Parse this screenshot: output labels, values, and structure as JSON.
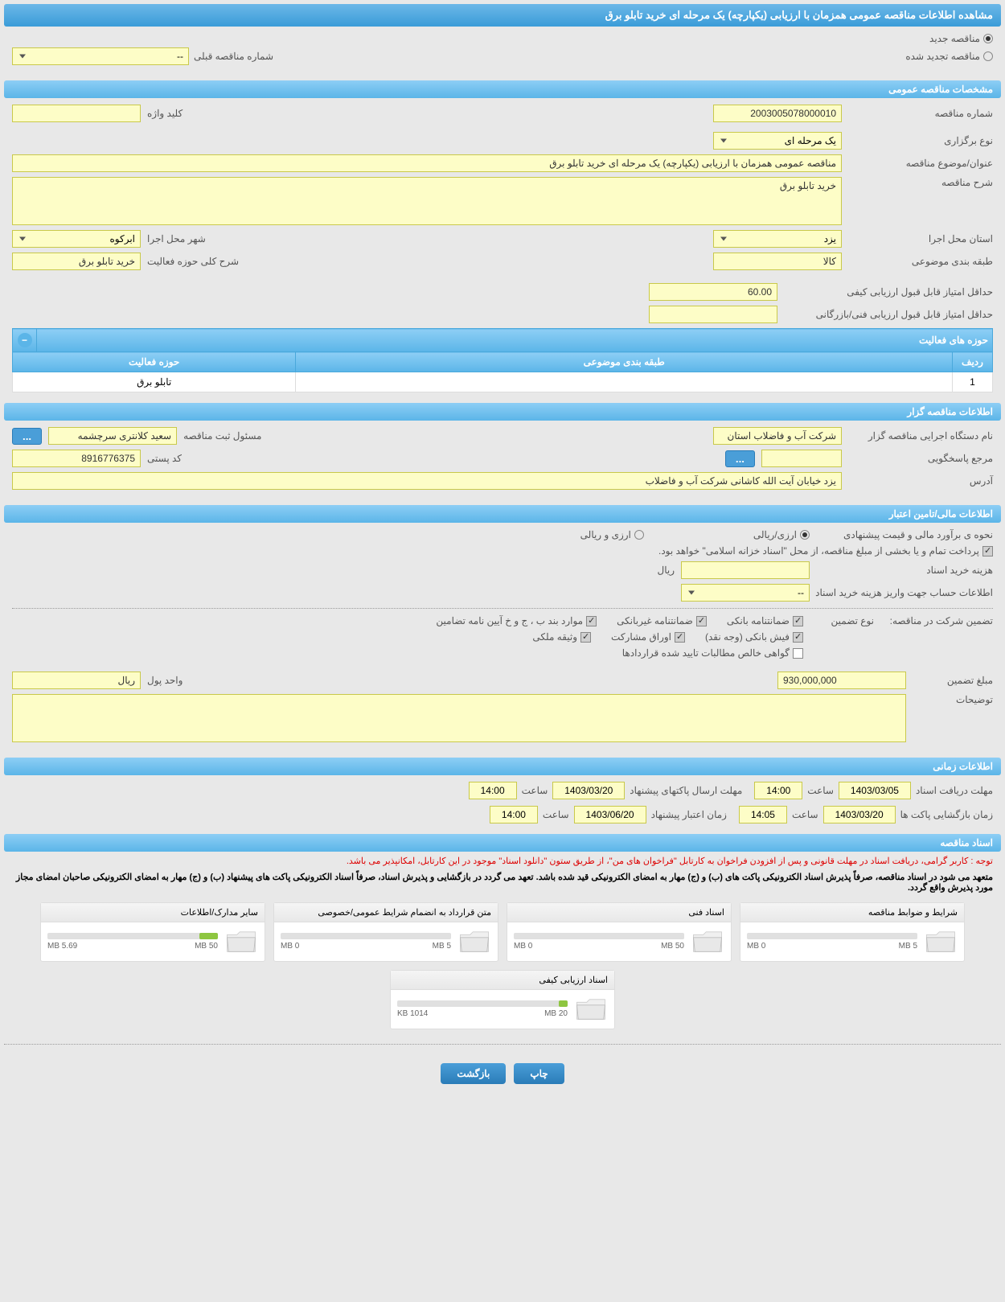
{
  "header": {
    "title": "مشاهده اطلاعات مناقصه عمومی همزمان با ارزیابی (یکپارچه) یک مرحله ای خرید تابلو برق"
  },
  "tender_type": {
    "new_label": "مناقصه جدید",
    "renewed_label": "مناقصه تجدید شده",
    "prev_number_label": "شماره مناقصه قبلی",
    "prev_number_value": "--"
  },
  "general": {
    "section_title": "مشخصات مناقصه عمومی",
    "number_label": "شماره مناقصه",
    "number_value": "2003005078000010",
    "type_label": "نوع برگزاری",
    "type_value": "یک مرحله ای",
    "keyword_label": "کلید واژه",
    "keyword_value": "",
    "subject_label": "عنوان/موضوع مناقصه",
    "subject_value": "مناقصه عمومی همزمان با ارزیابی (یکپارچه) یک مرحله ای خرید تابلو برق",
    "desc_label": "شرح مناقصه",
    "desc_value": "خرید تابلو برق",
    "province_label": "استان محل اجرا",
    "province_value": "یزد",
    "city_label": "شهر محل اجرا",
    "city_value": "ابرکوه",
    "category_label": "طبقه بندی موضوعی",
    "category_value": "کالا",
    "activity_desc_label": "شرح کلی حوزه فعالیت",
    "activity_desc_value": "خرید تابلو برق",
    "min_quality_label": "حداقل امتیاز قابل قبول ارزیابی کیفی",
    "min_quality_value": "60.00",
    "min_tech_label": "حداقل امتیاز قابل قبول ارزیابی فنی/بازرگانی",
    "min_tech_value": ""
  },
  "activities": {
    "header": "حوزه های فعالیت",
    "col_row": "ردیف",
    "col_category": "طبقه بندی موضوعی",
    "col_activity": "حوزه فعالیت",
    "rows": [
      {
        "idx": "1",
        "category": "",
        "activity": "تابلو برق"
      }
    ]
  },
  "organizer": {
    "section_title": "اطلاعات مناقصه گزار",
    "org_label": "نام دستگاه اجرایی مناقصه گزار",
    "org_value": "شرکت آب و فاضلاب استان",
    "responsible_label": "مسئول ثبت مناقصه",
    "responsible_value": "سعید کلانتری سرچشمه",
    "ref_label": "مرجع پاسخگویی",
    "ref_value": "",
    "dots": "...",
    "postal_label": "کد پستی",
    "postal_value": "8916776375",
    "address_label": "آدرس",
    "address_value": "یزد خیابان آیت الله کاشانی شرکت آب و فاضلاب"
  },
  "financial": {
    "section_title": "اطلاعات مالی/تامین اعتبار",
    "estimate_label": "نحوه ی برآورد مالی و قیمت پیشنهادی",
    "opt_rial": "ارزی/ریالی",
    "opt_both": "ارزی و ریالی",
    "treasury_note": "پرداخت تمام و یا بخشی از مبلغ مناقصه، از محل \"اسناد خزانه اسلامی\" خواهد بود.",
    "doc_cost_label": "هزینه خرید اسناد",
    "doc_cost_value": "",
    "doc_cost_unit": "ریال",
    "account_label": "اطلاعات حساب جهت واریز هزینه خرید اسناد",
    "account_value": "--",
    "guarantee_label": "تضمین شرکت در مناقصه:",
    "guarantee_type_label": "نوع تضمین",
    "chk_bank": "ضمانتنامه بانکی",
    "chk_nonbank": "ضمانتنامه غیربانکی",
    "chk_items": "موارد بند ب ، ج و خ آیین نامه تضامین",
    "chk_cash": "فیش بانکی (وجه نقد)",
    "chk_bonds": "اوراق مشارکت",
    "chk_property": "وثیقه ملکی",
    "chk_receivables": "گواهی خالص مطالبات تایید شده قراردادها",
    "amount_label": "مبلغ تضمین",
    "amount_value": "930,000,000",
    "unit_label": "واحد پول",
    "unit_value": "ریال",
    "notes_label": "توضیحات",
    "notes_value": ""
  },
  "timing": {
    "section_title": "اطلاعات زمانی",
    "receive_label": "مهلت دریافت اسناد",
    "receive_date": "1403/03/05",
    "receive_time_label": "ساعت",
    "receive_time": "14:00",
    "send_label": "مهلت ارسال پاکتهای پیشنهاد",
    "send_date": "1403/03/20",
    "send_time_label": "ساعت",
    "send_time": "14:00",
    "open_label": "زمان بازگشایی پاکت ها",
    "open_date": "1403/03/20",
    "open_time_label": "ساعت",
    "open_time": "14:05",
    "validity_label": "زمان اعتبار پیشنهاد",
    "validity_date": "1403/06/20",
    "validity_time_label": "ساعت",
    "validity_time": "14:00"
  },
  "docs": {
    "section_title": "اسناد مناقصه",
    "notice1": "توجه : کاربر گرامی، دریافت اسناد در مهلت قانونی و پس از افزودن فراخوان به کارتابل \"فراخوان های من\"، از طریق ستون \"دانلود اسناد\" موجود در این کارتابل، امکانپذیر می باشد.",
    "notice2": "متعهد می شود در اسناد مناقصه، صرفاً پذیرش اسناد الکترونیکی پاکت های (ب) و (ج) مهار به امضای الکترونیکی قید شده باشد. تعهد می گردد در بازگشایی و پذیرش اسناد، صرفاً اسناد الکترونیکی پاکت های پیشنهاد (ب) و (ج) مهار به امضای الکترونیکی صاحبان امضای مجاز مورد پذیرش واقع گردد.",
    "cards": [
      {
        "title": "شرایط و ضوابط مناقصه",
        "used": "0 MB",
        "total": "5 MB",
        "pct": 0
      },
      {
        "title": "اسناد فنی",
        "used": "0 MB",
        "total": "50 MB",
        "pct": 0
      },
      {
        "title": "متن قرارداد به انضمام شرایط عمومی/خصوصی",
        "used": "0 MB",
        "total": "5 MB",
        "pct": 0
      },
      {
        "title": "سایر مدارک/اطلاعات",
        "used": "5.69 MB",
        "total": "50 MB",
        "pct": 11
      },
      {
        "title": "اسناد ارزیابی کیفی",
        "used": "1014 KB",
        "total": "20 MB",
        "pct": 5
      }
    ]
  },
  "buttons": {
    "print": "چاپ",
    "back": "بازگشت"
  },
  "colors": {
    "header_bg": "#5bb5e8",
    "field_bg": "#fdfdc7",
    "field_border": "#c9c94a",
    "btn_bg": "#4a9ed8"
  }
}
